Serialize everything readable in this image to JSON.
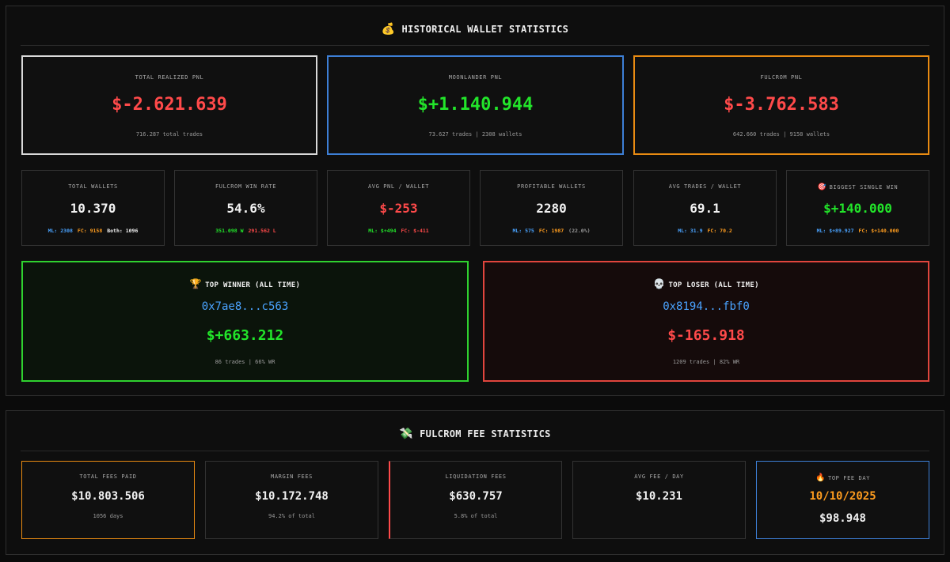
{
  "wallet": {
    "title_icon": "money-bag-icon",
    "title_emoji": "💰",
    "title": "HISTORICAL WALLET STATISTICS",
    "big_cards": [
      {
        "label": "TOTAL REALIZED PNL",
        "value": "$-2.621.639",
        "sub": "716.287 total trades",
        "border": "#d9d9d9",
        "color": "#ff4a4a"
      },
      {
        "label": "MOONLANDER PNL",
        "value": "$+1.140.944",
        "sub": "73.627 trades | 2308 wallets",
        "border": "#3d7fd6",
        "color": "#22e52a"
      },
      {
        "label": "FULCROM PNL",
        "value": "$-3.762.583",
        "sub": "642.660 trades | 9158 wallets",
        "border": "#e98b12",
        "color": "#ff4a4a"
      }
    ],
    "small_cards": [
      {
        "label": "TOTAL WALLETS",
        "value": "10.370",
        "color": "#f2f2f2",
        "sub": [
          {
            "text": "ML: 2308",
            "color": "#4aa3ff"
          },
          {
            "text": "FC: 9158",
            "color": "#ff9d1f"
          },
          {
            "text": "Both: 1096",
            "color": "#f2f2f2"
          }
        ]
      },
      {
        "label": "FULCROM WIN RATE",
        "value": "54.6%",
        "color": "#f2f2f2",
        "sub": [
          {
            "text": "351.098 W",
            "color": "#22e52a"
          },
          {
            "text": "291.562 L",
            "color": "#ff4a4a"
          }
        ]
      },
      {
        "label": "AVG PNL / WALLET",
        "value": "$-253",
        "color": "#ff4a4a",
        "sub": [
          {
            "text": "ML: $+494",
            "color": "#22e52a"
          },
          {
            "text": "FC: $-411",
            "color": "#ff4a4a"
          }
        ]
      },
      {
        "label": "PROFITABLE WALLETS",
        "value": "2280",
        "color": "#f2f2f2",
        "sub": [
          {
            "text": "ML: 575",
            "color": "#4aa3ff"
          },
          {
            "text": "FC: 1987",
            "color": "#ff9d1f"
          },
          {
            "text": "(22.0%)",
            "color": "#9a9a9a"
          }
        ]
      },
      {
        "label": "AVG TRADES / WALLET",
        "value": "69.1",
        "color": "#f2f2f2",
        "sub": [
          {
            "text": "ML: 31.9",
            "color": "#4aa3ff"
          },
          {
            "text": "FC: 70.2",
            "color": "#ff9d1f"
          }
        ]
      },
      {
        "label": "BIGGEST SINGLE WIN",
        "icon": "dart-icon",
        "emoji": "🎯",
        "value": "$+140.000",
        "color": "#22e52a",
        "sub": [
          {
            "text": "ML: $+89.927",
            "color": "#4aa3ff"
          },
          {
            "text": "FC: $+140.000",
            "color": "#ff9d1f"
          }
        ]
      }
    ],
    "top_winner": {
      "icon": "trophy-icon",
      "emoji": "🏆",
      "title": "TOP WINNER (ALL TIME)",
      "address": "0x7ae8...c563",
      "amount": "$+663.212",
      "meta": "86 trades | 66% WR",
      "border": "#2fd12f",
      "bg": "#0b140b",
      "color": "#22e52a"
    },
    "top_loser": {
      "icon": "skull-icon",
      "emoji": "💀",
      "title": "TOP LOSER (ALL TIME)",
      "address": "0x8194...fbf0",
      "amount": "$-165.918",
      "meta": "1209 trades | 82% WR",
      "border": "#e0453d",
      "bg": "#150b0b",
      "color": "#ff4a4a"
    }
  },
  "fees": {
    "title_icon": "money-wings-icon",
    "title_emoji": "💸",
    "title": "FULCROM FEE STATISTICS",
    "cards": [
      {
        "label": "TOTAL FEES PAID",
        "value": "$10.803.506",
        "sub": "1056 days",
        "border": "#e98b12",
        "color": "#f2f2f2"
      },
      {
        "label": "MARGIN FEES",
        "value": "$10.172.748",
        "sub": "94.2% of total",
        "border": "#333333",
        "color": "#f2f2f2"
      },
      {
        "label": "LIQUIDATION FEES",
        "value": "$630.757",
        "sub": "5.8% of total",
        "border": "#333333",
        "color": "#f2f2f2",
        "accent": "#ff4a4a"
      },
      {
        "label": "AVG FEE / DAY",
        "value": "$10.231",
        "sub": "",
        "border": "#333333",
        "color": "#f2f2f2"
      },
      {
        "label": "TOP FEE DAY",
        "icon": "fire-icon",
        "emoji": "🔥",
        "value": "10/10/2025",
        "value2": "$98.948",
        "border": "#3d7fd6",
        "color": "#ff9d1f"
      }
    ]
  }
}
